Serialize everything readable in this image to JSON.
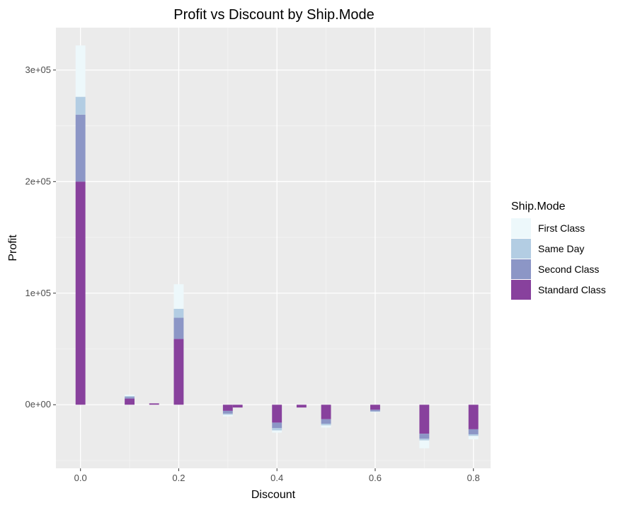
{
  "chart_data": {
    "type": "bar",
    "stacked": true,
    "title": "Profit vs Discount by Ship.Mode",
    "xlabel": "Discount",
    "ylabel": "Profit",
    "xlim": [
      -0.05,
      0.835
    ],
    "ylim": [
      -57000,
      338000
    ],
    "x_ticks": [
      0.0,
      0.2,
      0.4,
      0.6,
      0.8
    ],
    "x_tick_labels": [
      "0.0",
      "0.2",
      "0.4",
      "0.6",
      "0.8"
    ],
    "y_ticks": [
      0,
      100000,
      200000,
      300000
    ],
    "y_tick_labels": [
      "0e+00",
      "1e+05",
      "2e+05",
      "3e+05"
    ],
    "bar_width": 0.02,
    "grid": true,
    "legend": {
      "title": "Ship.Mode",
      "position": "right"
    },
    "x": [
      0.0,
      0.1,
      0.15,
      0.2,
      0.3,
      0.32,
      0.4,
      0.45,
      0.5,
      0.6,
      0.7,
      0.8
    ],
    "series": [
      {
        "name": "Standard Class",
        "color": "#88419d",
        "values": [
          200000,
          5500,
          1200,
          59000,
          -5500,
          -2500,
          -16000,
          -2500,
          -13000,
          -4500,
          -26000,
          -22000
        ]
      },
      {
        "name": "Second Class",
        "color": "#8c96c6",
        "values": [
          60000,
          1500,
          0,
          19000,
          -2500,
          0,
          -5000,
          0,
          -4000,
          -1500,
          -4500,
          -4500
        ]
      },
      {
        "name": "Same Day",
        "color": "#b3cde3",
        "values": [
          16000,
          800,
          0,
          8000,
          -1000,
          0,
          -2000,
          0,
          -1500,
          -400,
          -1500,
          -1500
        ]
      },
      {
        "name": "First Class",
        "color": "#edf8fb",
        "values": [
          46000,
          1200,
          0,
          22000,
          -1500,
          0,
          -2000,
          0,
          -2000,
          -500,
          -7000,
          -3000
        ]
      }
    ]
  }
}
